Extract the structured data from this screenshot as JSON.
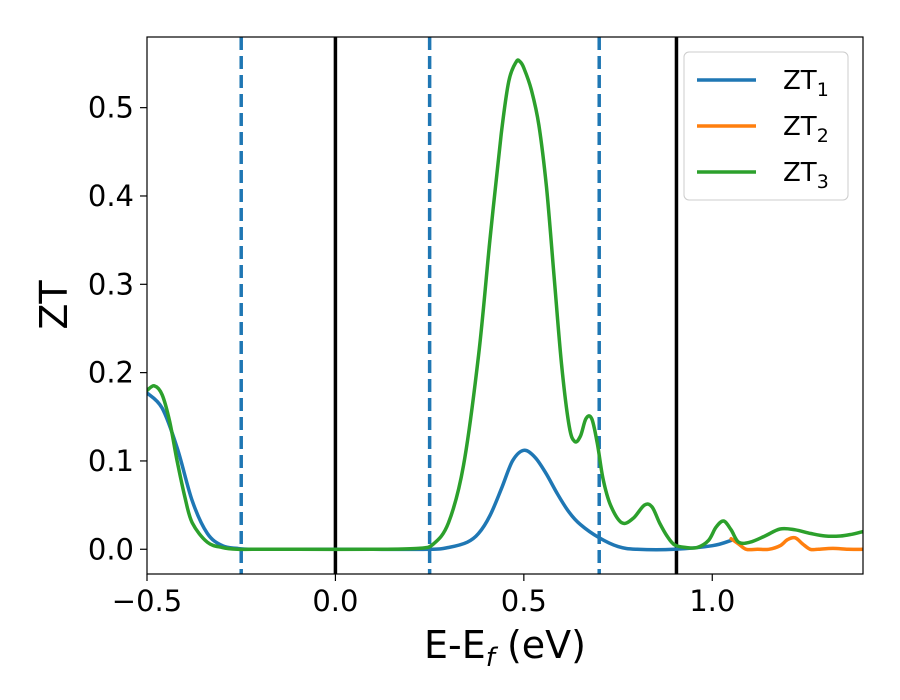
{
  "chart_data": {
    "type": "line",
    "title": "",
    "xlabel_main": "E-E",
    "xlabel_sub": "f",
    "xlabel_tail": " (eV)",
    "ylabel": "ZT",
    "xlim": [
      -0.5,
      1.4
    ],
    "ylim": [
      -0.028,
      0.58
    ],
    "xticks": [
      {
        "value": -0.5,
        "label": "−0.5"
      },
      {
        "value": 0.0,
        "label": "0.0"
      },
      {
        "value": 0.5,
        "label": "0.5"
      },
      {
        "value": 1.0,
        "label": "1.0"
      }
    ],
    "yticks": [
      {
        "value": 0.0,
        "label": "0.0"
      },
      {
        "value": 0.1,
        "label": "0.1"
      },
      {
        "value": 0.2,
        "label": "0.2"
      },
      {
        "value": 0.3,
        "label": "0.3"
      },
      {
        "value": 0.4,
        "label": "0.4"
      },
      {
        "value": 0.5,
        "label": "0.5"
      }
    ],
    "grid": false,
    "legend_placement": "top-right",
    "vlines": [
      {
        "x": -0.25,
        "style": "dashed",
        "color": "#1f77b4"
      },
      {
        "x": 0.0,
        "style": "solid",
        "color": "#000000"
      },
      {
        "x": 0.25,
        "style": "dashed",
        "color": "#1f77b4"
      },
      {
        "x": 0.7,
        "style": "dashed",
        "color": "#1f77b4"
      },
      {
        "x": 0.905,
        "style": "solid",
        "color": "#000000"
      }
    ],
    "series": [
      {
        "name": "ZT",
        "name_sub": "1",
        "color": "#1f77b4",
        "x": [
          -0.5,
          -0.46,
          -0.42,
          -0.38,
          -0.34,
          -0.3,
          -0.26,
          -0.22,
          -0.1,
          0.1,
          0.25,
          0.3,
          0.35,
          0.38,
          0.41,
          0.44,
          0.47,
          0.5,
          0.53,
          0.56,
          0.59,
          0.62,
          0.65,
          0.7,
          0.75,
          0.8,
          0.9,
          1.0,
          1.05
        ],
        "y": [
          0.177,
          0.16,
          0.115,
          0.055,
          0.018,
          0.004,
          0.001,
          0.0,
          0.0,
          0.0,
          0.0,
          0.002,
          0.008,
          0.018,
          0.038,
          0.068,
          0.1,
          0.112,
          0.104,
          0.085,
          0.062,
          0.042,
          0.028,
          0.013,
          0.003,
          0.0,
          0.0,
          0.004,
          0.01
        ]
      },
      {
        "name": "ZT",
        "name_sub": "2",
        "color": "#ff7f0e",
        "x": [
          1.05,
          1.07,
          1.09,
          1.12,
          1.15,
          1.18,
          1.2,
          1.22,
          1.24,
          1.26,
          1.28,
          1.32,
          1.36,
          1.4
        ],
        "y": [
          0.012,
          0.006,
          0.0,
          0.0,
          0.0,
          0.004,
          0.011,
          0.013,
          0.006,
          0.0,
          0.0,
          0.001,
          0.0,
          0.0
        ]
      },
      {
        "name": "ZT",
        "name_sub": "3",
        "color": "#2ca02c",
        "x": [
          -0.5,
          -0.48,
          -0.46,
          -0.44,
          -0.42,
          -0.4,
          -0.38,
          -0.34,
          -0.3,
          -0.26,
          -0.22,
          -0.1,
          0.1,
          0.22,
          0.26,
          0.3,
          0.34,
          0.38,
          0.41,
          0.44,
          0.46,
          0.48,
          0.49,
          0.5,
          0.52,
          0.54,
          0.56,
          0.58,
          0.6,
          0.62,
          0.635,
          0.65,
          0.665,
          0.68,
          0.695,
          0.71,
          0.73,
          0.76,
          0.79,
          0.82,
          0.84,
          0.86,
          0.88,
          0.9,
          0.93,
          0.96,
          0.99,
          1.01,
          1.03,
          1.05,
          1.07,
          1.1,
          1.14,
          1.18,
          1.22,
          1.26,
          1.3,
          1.34,
          1.37,
          1.4
        ],
        "y": [
          0.18,
          0.185,
          0.175,
          0.145,
          0.1,
          0.06,
          0.03,
          0.008,
          0.002,
          0.0,
          0.0,
          0.0,
          0.0,
          0.001,
          0.006,
          0.03,
          0.095,
          0.22,
          0.35,
          0.47,
          0.53,
          0.552,
          0.552,
          0.545,
          0.52,
          0.48,
          0.41,
          0.31,
          0.21,
          0.14,
          0.122,
          0.128,
          0.148,
          0.148,
          0.12,
          0.08,
          0.05,
          0.03,
          0.035,
          0.05,
          0.048,
          0.03,
          0.015,
          0.005,
          0.002,
          0.002,
          0.01,
          0.025,
          0.032,
          0.022,
          0.008,
          0.008,
          0.015,
          0.023,
          0.022,
          0.018,
          0.015,
          0.015,
          0.017,
          0.02
        ]
      }
    ]
  }
}
